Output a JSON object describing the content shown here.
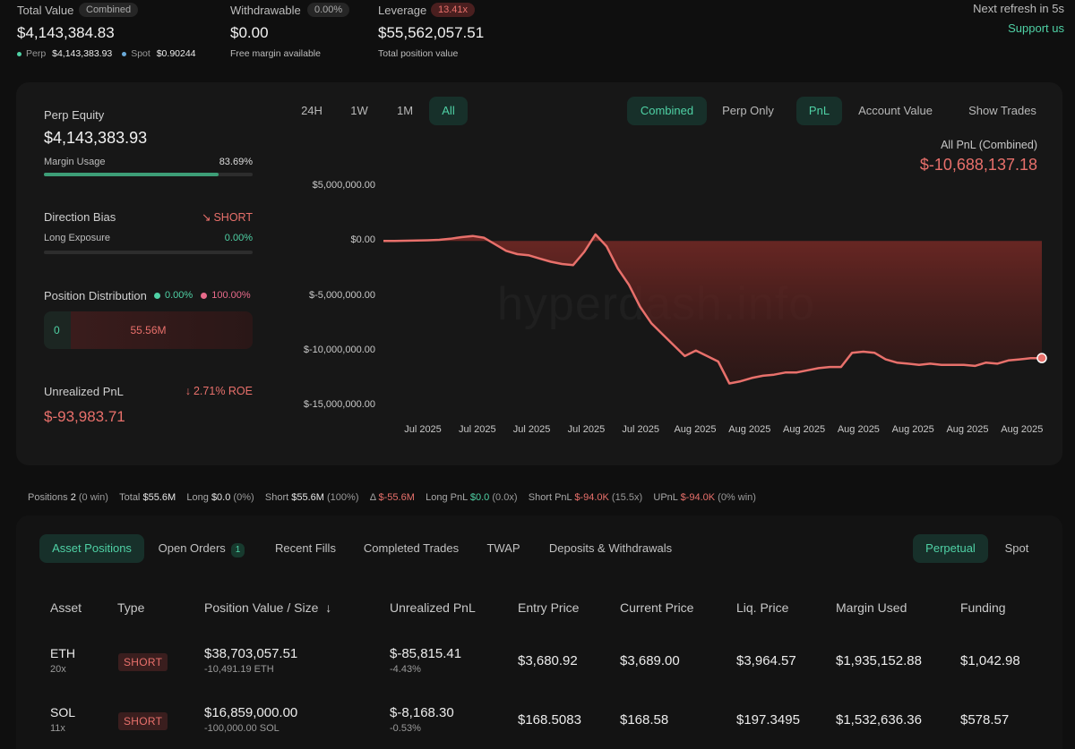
{
  "summary": {
    "total_value_label": "Total Value",
    "total_value_badge": "Combined",
    "total_value": "$4,143,384.83",
    "perp_label": "Perp",
    "perp_value": "$4,143,383.93",
    "spot_label": "Spot",
    "spot_value": "$0.90244",
    "withdrawable_label": "Withdrawable",
    "withdrawable_badge": "0.00%",
    "withdrawable_value": "$0.00",
    "withdrawable_sub": "Free margin available",
    "leverage_label": "Leverage",
    "leverage_badge": "13.41x",
    "leverage_value": "$55,562,057.51",
    "leverage_sub": "Total position value",
    "refresh_text": "Next refresh in 5s",
    "support_link": "Support us"
  },
  "left_panel": {
    "perp_equity_label": "Perp Equity",
    "perp_equity_value": "$4,143,383.93",
    "margin_usage_label": "Margin Usage",
    "margin_usage_value": "83.69%",
    "margin_usage_fraction": 0.8369,
    "direction_bias_label": "Direction Bias",
    "direction_bias_value": "SHORT",
    "long_exposure_label": "Long Exposure",
    "long_exposure_value": "0.00%",
    "position_distribution_label": "Position Distribution",
    "dist_long_pct": "0.00%",
    "dist_short_pct": "100.00%",
    "dist_long_amount": "0",
    "dist_short_amount": "55.56M",
    "unrealized_pnl_label": "Unrealized PnL",
    "roe_value": "2.71% ROE",
    "unrealized_pnl_value": "$-93,983.71"
  },
  "chart_controls": {
    "ranges": [
      "24H",
      "1W",
      "1M",
      "All"
    ],
    "active_range": "All",
    "modes": [
      "Combined",
      "Perp Only"
    ],
    "active_mode": "Combined",
    "metrics": [
      "PnL",
      "Account Value"
    ],
    "active_metric": "PnL",
    "show_trades": "Show Trades",
    "headline_label": "All PnL (Combined)",
    "headline_value": "$-10,688,137.18",
    "watermark": "hyperdash.info"
  },
  "chart_data": {
    "type": "area",
    "y_ticks": [
      "$5,000,000.00",
      "$0.00",
      "$-5,000,000.00",
      "$-10,000,000.00",
      "$-15,000,000.00"
    ],
    "x_ticks": [
      "Jul 2025",
      "Jul 2025",
      "Jul 2025",
      "Jul 2025",
      "Jul 2025",
      "Aug 2025",
      "Aug 2025",
      "Aug 2025",
      "Aug 2025",
      "Aug 2025",
      "Aug 2025",
      "Aug 2025"
    ],
    "ylim": [
      -15000000,
      5000000
    ],
    "x": [
      0,
      1,
      2,
      3,
      4,
      5,
      6,
      7,
      8,
      9,
      10,
      11,
      12,
      13,
      14,
      15,
      16,
      17,
      18,
      19,
      20,
      21,
      22,
      23,
      24,
      25,
      26,
      27,
      28,
      29,
      30,
      31,
      32,
      33,
      34,
      35,
      36,
      37,
      38,
      39,
      40,
      41,
      42,
      43,
      44,
      45,
      46,
      47,
      48,
      49,
      50,
      51,
      52,
      53,
      54,
      55,
      56,
      57,
      58,
      59
    ],
    "values": [
      0,
      0,
      20000,
      40000,
      60000,
      100000,
      200000,
      350000,
      450000,
      300000,
      -300000,
      -900000,
      -1200000,
      -1300000,
      -1600000,
      -1900000,
      -2100000,
      -2200000,
      -1000000,
      600000,
      -500000,
      -2500000,
      -4000000,
      -6000000,
      -7500000,
      -8500000,
      -9500000,
      -10500000,
      -10000000,
      -10500000,
      -11000000,
      -13000000,
      -12800000,
      -12500000,
      -12300000,
      -12200000,
      -12000000,
      -12000000,
      -11800000,
      -11600000,
      -11500000,
      -11500000,
      -10200000,
      -10100000,
      -10200000,
      -10800000,
      -11100000,
      -11200000,
      -11300000,
      -11200000,
      -11300000,
      -11300000,
      -11300000,
      -11400000,
      -11100000,
      -11200000,
      -10900000,
      -10800000,
      -10700000,
      -10688137
    ],
    "color": "#e8706b"
  },
  "position_stats": {
    "positions_label": "Positions",
    "positions_count": "2",
    "positions_win": "(0 win)",
    "total_label": "Total",
    "total_value": "$55.6M",
    "long_label": "Long",
    "long_value": "$0.0",
    "long_pct": "(0%)",
    "short_label": "Short",
    "short_value": "$55.6M",
    "short_pct": "(100%)",
    "delta_label": "Δ",
    "delta_value": "$-55.6M",
    "long_pnl_label": "Long PnL",
    "long_pnl_value": "$0.0",
    "long_pnl_ratio": "(0.0x)",
    "short_pnl_label": "Short PnL",
    "short_pnl_value": "$-94.0K",
    "short_pnl_ratio": "(15.5x)",
    "upnl_label": "UPnL",
    "upnl_value": "$-94.0K",
    "upnl_win": "(0% win)"
  },
  "tabs": {
    "items": [
      "Asset Positions",
      "Open Orders",
      "Recent Fills",
      "Completed Trades",
      "TWAP",
      "Deposits & Withdrawals"
    ],
    "open_orders_count": "1",
    "market_types": [
      "Perpetual",
      "Spot"
    ]
  },
  "table": {
    "headers": [
      "Asset",
      "Type",
      "Position Value / Size",
      "Unrealized PnL",
      "Entry Price",
      "Current Price",
      "Liq. Price",
      "Margin Used",
      "Funding"
    ],
    "sort_indicator": "↓",
    "rows": [
      {
        "asset": "ETH",
        "leverage": "20x",
        "type": "SHORT",
        "value": "$38,703,057.51",
        "size": "-10,491.19 ETH",
        "pnl": "$-85,815.41",
        "pnl_pct": "-4.43%",
        "entry": "$3,680.92",
        "current": "$3,689.00",
        "liq": "$3,964.57",
        "margin": "$1,935,152.88",
        "funding": "$1,042.98"
      },
      {
        "asset": "SOL",
        "leverage": "11x",
        "type": "SHORT",
        "value": "$16,859,000.00",
        "size": "-100,000.00 SOL",
        "pnl": "$-8,168.30",
        "pnl_pct": "-0.53%",
        "entry": "$168.5083",
        "current": "$168.58",
        "liq": "$197.3495",
        "margin": "$1,532,636.36",
        "funding": "$578.57"
      }
    ]
  }
}
